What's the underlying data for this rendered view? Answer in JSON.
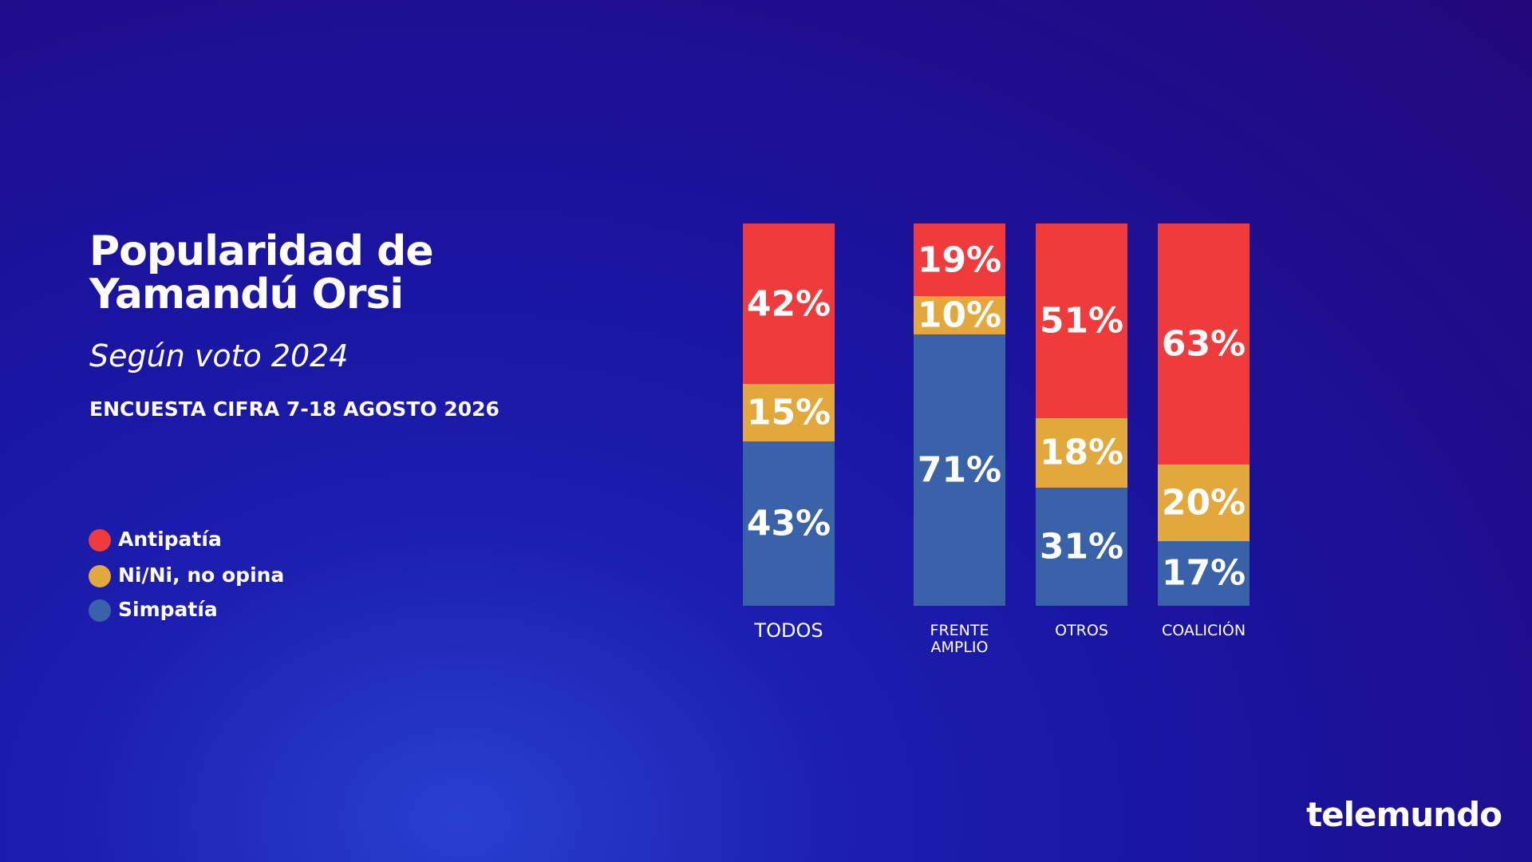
{
  "chart_data": {
    "type": "stacked-bar",
    "title": "Popularidad de Yamandú Orsi",
    "subtitle": "Según voto 2024",
    "note": "ENCUESTA CIFRA 7-18 AGOSTO 2026",
    "brand": "telemundo",
    "categories": [
      "TODOS",
      "FRENTE AMPLIO",
      "OTROS",
      "COALICIÓN"
    ],
    "ylim": [
      0,
      100
    ],
    "legend": "left",
    "series": [
      {
        "name": "Antipatía",
        "color": "#ef3b3b",
        "values": [
          42,
          19,
          51,
          63
        ],
        "value_labels": [
          "42%",
          "19%",
          "51%",
          "63%"
        ]
      },
      {
        "name": "Ni/Ni, no opina",
        "color": "#e2a83b",
        "values": [
          15,
          10,
          18,
          20
        ],
        "value_labels": [
          "15%",
          "10%",
          "18%",
          "20%"
        ]
      },
      {
        "name": "Simpatía",
        "color": "#3a62a8",
        "values": [
          43,
          71,
          31,
          17
        ],
        "value_labels": [
          "43%",
          "71%",
          "31%",
          "17%"
        ]
      }
    ]
  }
}
